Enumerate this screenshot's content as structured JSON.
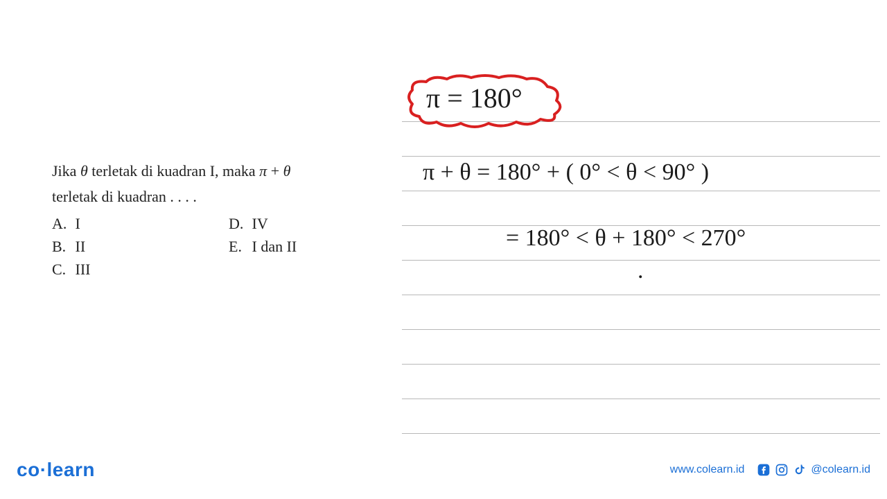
{
  "question": {
    "line1_html": "Jika <i>θ</i> terletak di kuadran I, maka <i>π</i> + <i>θ</i>",
    "line2": "terletak di kuadran . . . .",
    "options": [
      {
        "letter": "A.",
        "text": "I"
      },
      {
        "letter": "B.",
        "text": "II"
      },
      {
        "letter": "C.",
        "text": "III"
      },
      {
        "letter": "D.",
        "text": "IV"
      },
      {
        "letter": "E.",
        "text": "I dan II"
      }
    ],
    "text_color": "#222222",
    "fontsize": 22
  },
  "notebook": {
    "line_color": "#b8b8b8",
    "line_y_positions": [
      35,
      85,
      135,
      185,
      235,
      285,
      335,
      385,
      435,
      485
    ],
    "cloud": {
      "stroke": "#d92020",
      "stroke_width": 4,
      "fill": "none",
      "text": "π = 180°",
      "text_color": "#1a1a1a",
      "text_fontsize": 40
    },
    "handwriting": {
      "color": "#1a1a1a",
      "fontsize": 34,
      "line1": "π + θ  =  180°  + ( 0° <  θ  < 90° )",
      "line2": "=     180°  <  θ + 180°  < 270°",
      "dot": "."
    }
  },
  "footer": {
    "logo_text_co": "co",
    "logo_text_learn": "learn",
    "logo_color": "#1b6fd6",
    "website": "www.colearn.id",
    "handle": "@colearn.id",
    "icon_color": "#1b6fd6"
  }
}
